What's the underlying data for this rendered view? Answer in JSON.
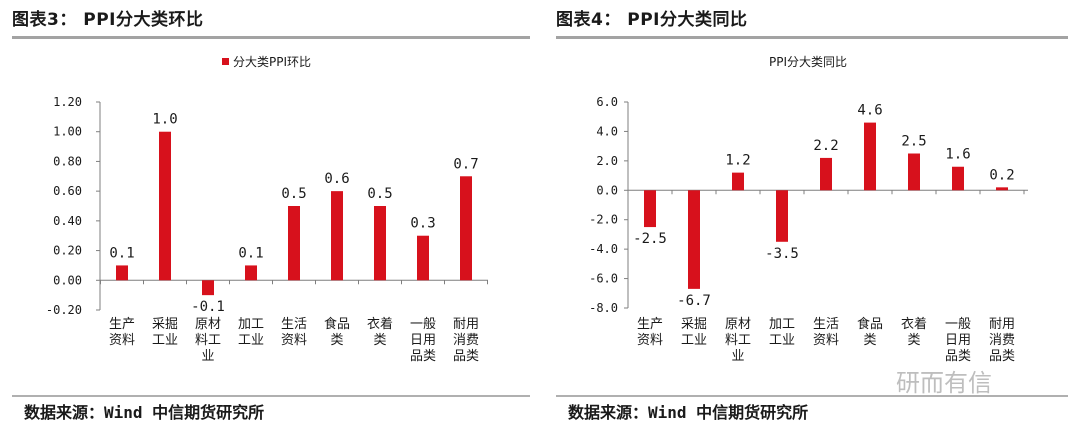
{
  "figures": [
    {
      "fig_title": "图表3： PPI分大类环比",
      "source": "数据来源：Wind 中信期货研究所"
    },
    {
      "fig_title": "图表4： PPI分大类同比",
      "source": "数据来源：Wind 中信期货研究所"
    }
  ],
  "watermark": "研而有信",
  "colors": {
    "bar": "#d7111c",
    "axis": "#7f7f7f",
    "rule": "#a3a3a3"
  },
  "chart_data": [
    {
      "type": "bar",
      "title": "",
      "legend": "分大类PPI环比",
      "legend_position": "top",
      "categories": [
        "生产资料",
        "采掘工业",
        "原材料工业",
        "加工工业",
        "生活资料",
        "食品类",
        "衣着类",
        "一般日用品类",
        "耐用消费品类"
      ],
      "category_lines": [
        [
          "生产",
          "资料"
        ],
        [
          "采掘",
          "工业"
        ],
        [
          "原材",
          "料工",
          "业"
        ],
        [
          "加工",
          "工业"
        ],
        [
          "生活",
          "资料"
        ],
        [
          "食品",
          "类"
        ],
        [
          "衣着",
          "类"
        ],
        [
          "一般",
          "日用",
          "品类"
        ],
        [
          "耐用",
          "消费",
          "品类"
        ]
      ],
      "values": [
        0.1,
        1.0,
        -0.1,
        0.1,
        0.5,
        0.6,
        0.5,
        0.3,
        0.7
      ],
      "data_labels": [
        "0.1",
        "1.0",
        "-0.1",
        "0.1",
        "0.5",
        "0.6",
        "0.5",
        "0.3",
        "0.7"
      ],
      "ylim": [
        -0.2,
        1.2
      ],
      "yticks": [
        -0.2,
        0.0,
        0.2,
        0.4,
        0.6,
        0.8,
        1.0,
        1.2
      ],
      "ytick_labels": [
        "-0.20",
        "0.00",
        "0.20",
        "0.40",
        "0.60",
        "0.80",
        "1.00",
        "1.20"
      ],
      "grid": false,
      "xlabel": "",
      "ylabel": ""
    },
    {
      "type": "bar",
      "title": "PPI分大类同比",
      "legend": "",
      "categories": [
        "生产资料",
        "采掘工业",
        "原材料工业",
        "加工工业",
        "生活资料",
        "食品类",
        "衣着类",
        "一般日用品类",
        "耐用消费品类"
      ],
      "category_lines": [
        [
          "生产",
          "资料"
        ],
        [
          "采掘",
          "工业"
        ],
        [
          "原材",
          "料工",
          "业"
        ],
        [
          "加工",
          "工业"
        ],
        [
          "生活",
          "资料"
        ],
        [
          "食品",
          "类"
        ],
        [
          "衣着",
          "类"
        ],
        [
          "一般",
          "日用",
          "品类"
        ],
        [
          "耐用",
          "消费",
          "品类"
        ]
      ],
      "values": [
        -2.5,
        -6.7,
        1.2,
        -3.5,
        2.2,
        4.6,
        2.5,
        1.6,
        0.2
      ],
      "data_labels": [
        "-2.5",
        "-6.7",
        "1.2",
        "-3.5",
        "2.2",
        "4.6",
        "2.5",
        "1.6",
        "0.2"
      ],
      "ylim": [
        -8.0,
        6.0
      ],
      "yticks": [
        -8.0,
        -6.0,
        -4.0,
        -2.0,
        0.0,
        2.0,
        4.0,
        6.0
      ],
      "ytick_labels": [
        "-8.0",
        "-6.0",
        "-4.0",
        "-2.0",
        "0.0",
        "2.0",
        "4.0",
        "6.0"
      ],
      "grid": false,
      "xlabel": "",
      "ylabel": ""
    }
  ]
}
